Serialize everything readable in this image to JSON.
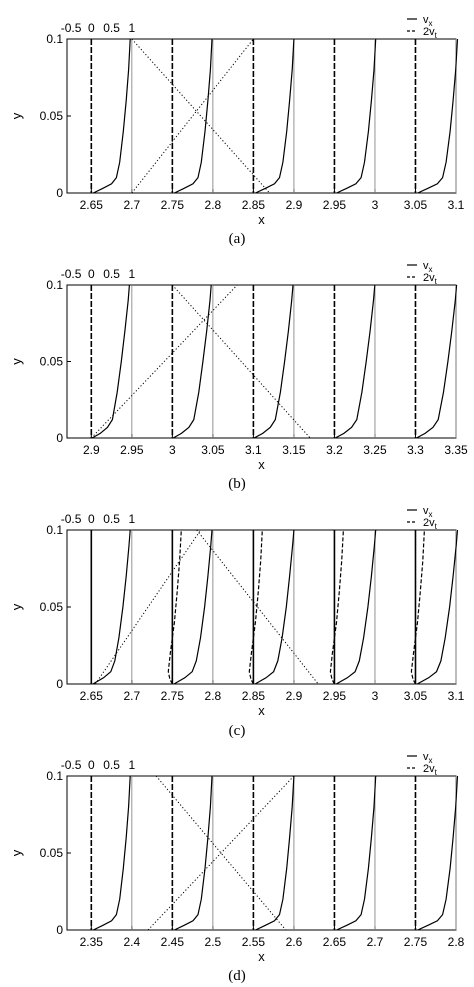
{
  "figure": {
    "subcaption_labels": [
      "(a)",
      "(b)",
      "(c)",
      "(d)"
    ]
  },
  "chart_data": [
    {
      "type": "line",
      "caption": "(a)",
      "xlabel": "x",
      "ylabel": "y",
      "xlim": [
        2.62,
        3.1
      ],
      "ylim": [
        0,
        0.1
      ],
      "xticks": [
        2.65,
        2.7,
        2.75,
        2.8,
        2.85,
        2.9,
        2.95,
        3,
        3.05,
        3.1
      ],
      "yticks": [
        0,
        0.05,
        0.1
      ],
      "top_scale_ticks": [
        -0.5,
        0,
        0.5,
        1
      ],
      "legend": {
        "entries": [
          "v",
          "2v"
        ],
        "subscripts": [
          "x",
          "t"
        ],
        "position": "top-right"
      },
      "profile_stations": [
        2.65,
        2.75,
        2.85,
        2.95,
        3.05
      ],
      "profile_style": "a",
      "diagonals": [
        {
          "x0": 2.7,
          "y0": 0.1,
          "x1": 2.87,
          "y1": 0
        },
        {
          "x0": 2.7,
          "y0": 0,
          "x1": 2.85,
          "y1": 0.1
        }
      ]
    },
    {
      "type": "line",
      "caption": "(b)",
      "xlabel": "x",
      "ylabel": "y",
      "xlim": [
        2.87,
        3.35
      ],
      "ylim": [
        0,
        0.1
      ],
      "xticks": [
        2.9,
        2.95,
        3,
        3.05,
        3.1,
        3.15,
        3.2,
        3.25,
        3.3,
        3.35
      ],
      "yticks": [
        0,
        0.05,
        0.1
      ],
      "top_scale_ticks": [
        -0.5,
        0,
        0.5,
        1
      ],
      "legend": {
        "entries": [
          "v",
          "2v"
        ],
        "subscripts": [
          "x",
          "t"
        ],
        "position": "top-right"
      },
      "profile_stations": [
        2.9,
        3.0,
        3.1,
        3.2,
        3.3
      ],
      "profile_style": "b",
      "diagonals": [
        {
          "x0": 2.9,
          "y0": 0,
          "x1": 3.08,
          "y1": 0.1
        },
        {
          "x0": 3.0,
          "y0": 0.1,
          "x1": 3.17,
          "y1": 0
        }
      ]
    },
    {
      "type": "line",
      "caption": "(c)",
      "xlabel": "x",
      "ylabel": "y",
      "xlim": [
        2.62,
        3.1
      ],
      "ylim": [
        0,
        0.1
      ],
      "xticks": [
        2.65,
        2.7,
        2.75,
        2.8,
        2.85,
        2.9,
        2.95,
        3,
        3.05,
        3.1
      ],
      "yticks": [
        0,
        0.05,
        0.1
      ],
      "top_scale_ticks": [
        -0.5,
        0,
        0.5,
        1
      ],
      "legend": {
        "entries": [
          "v",
          "2v"
        ],
        "subscripts": [
          "x",
          "t"
        ],
        "position": "top-right"
      },
      "profile_stations": [
        2.65,
        2.75,
        2.85,
        2.95,
        3.05
      ],
      "profile_style": "c",
      "diagonals": [
        {
          "x0": 2.655,
          "y0": 0,
          "x1": 2.785,
          "y1": 0.1
        },
        {
          "x0": 2.78,
          "y0": 0.1,
          "x1": 2.93,
          "y1": 0
        }
      ]
    },
    {
      "type": "line",
      "caption": "(d)",
      "xlabel": "x",
      "ylabel": "y",
      "xlim": [
        2.32,
        2.8
      ],
      "ylim": [
        0,
        0.1
      ],
      "xticks": [
        2.35,
        2.4,
        2.45,
        2.5,
        2.55,
        2.6,
        2.65,
        2.7,
        2.75,
        2.8
      ],
      "yticks": [
        0,
        0.05,
        0.1
      ],
      "top_scale_ticks": [
        -0.5,
        0,
        0.5,
        1
      ],
      "legend": {
        "entries": [
          "v",
          "2v"
        ],
        "subscripts": [
          "x",
          "t"
        ],
        "position": "top-right"
      },
      "profile_stations": [
        2.35,
        2.45,
        2.55,
        2.65,
        2.75
      ],
      "profile_style": "a",
      "diagonals": [
        {
          "x0": 2.43,
          "y0": 0.1,
          "x1": 2.59,
          "y1": 0
        },
        {
          "x0": 2.42,
          "y0": 0,
          "x1": 2.6,
          "y1": 0.1
        }
      ]
    }
  ]
}
